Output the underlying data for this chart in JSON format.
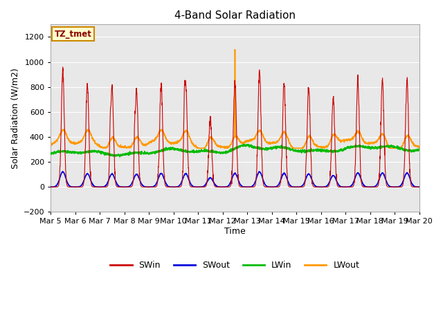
{
  "title": "4-Band Solar Radiation",
  "xlabel": "Time",
  "ylabel": "Solar Radiation (W/m2)",
  "ylim": [
    -200,
    1300
  ],
  "annotation_text": "TZ_tmet",
  "annotation_bg": "#ffffcc",
  "annotation_border": "#cc8800",
  "fig_bg": "#ffffff",
  "plot_bg": "#e8e8e8",
  "series": {
    "SWin": {
      "color": "#cc0000",
      "lw": 0.8
    },
    "SWout": {
      "color": "#0000dd",
      "lw": 1.2
    },
    "LWin": {
      "color": "#00bb00",
      "lw": 1.2
    },
    "LWout": {
      "color": "#ff9900",
      "lw": 1.2
    }
  },
  "xtick_labels": [
    "Mar 5",
    "Mar 6",
    "Mar 7",
    "Mar 8",
    "Mar 9",
    "Mar 10",
    "Mar 11",
    "Mar 12",
    "Mar 13",
    "Mar 14",
    "Mar 15",
    "Mar 16",
    "Mar 17",
    "Mar 18",
    "Mar 19",
    "Mar 20"
  ],
  "ytick_values": [
    -200,
    0,
    200,
    400,
    600,
    800,
    1000,
    1200
  ],
  "grid_color": "#ffffff",
  "legend_entries": [
    "SWin",
    "SWout",
    "LWin",
    "LWout"
  ],
  "legend_colors": [
    "#cc0000",
    "#0000dd",
    "#00bb00",
    "#ff9900"
  ],
  "sw_peaks": [
    930,
    815,
    800,
    780,
    830,
    820,
    560,
    835,
    930,
    840,
    800,
    710,
    860,
    860,
    860
  ],
  "sw_out_ratio": 0.13,
  "lwin_base": 265,
  "lwout_base": 335,
  "days": 15,
  "pts_per_day": 144
}
